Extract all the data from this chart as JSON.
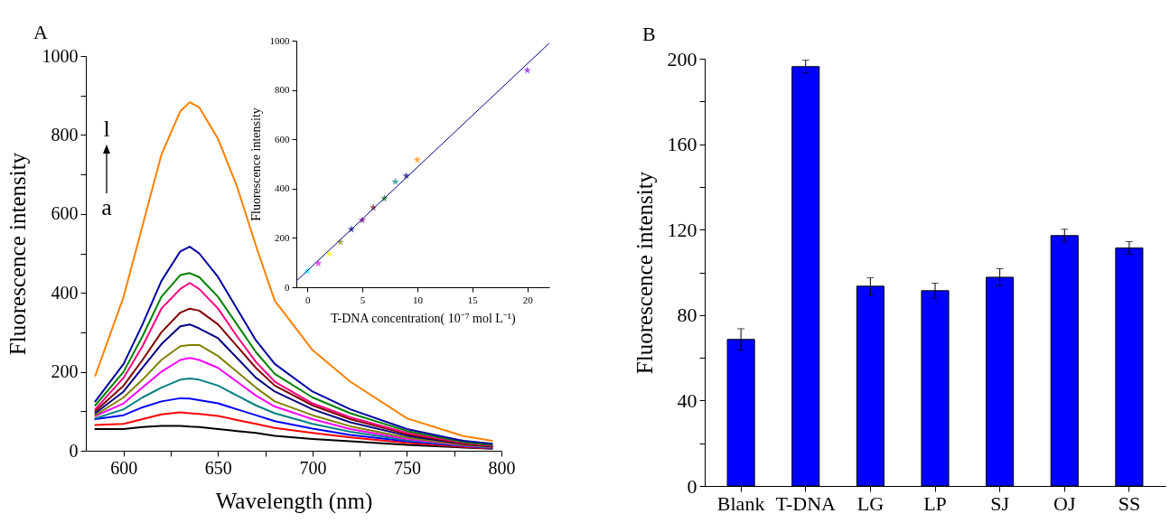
{
  "chart_data": [
    {
      "type": "line",
      "title": "A",
      "xlabel": "Wavelength (nm)",
      "ylabel": "Fluorescence intensity",
      "line_style": "solid",
      "annotations": [
        "l",
        "a"
      ],
      "x": [
        585,
        600,
        610,
        620,
        630,
        635,
        640,
        650,
        660,
        670,
        680,
        700,
        720,
        750,
        780,
        795
      ],
      "series": [
        {
          "color": "#000000",
          "values": [
            55,
            55,
            60,
            63,
            63,
            61,
            60,
            55,
            50,
            45,
            38,
            30,
            24,
            15,
            8,
            5
          ]
        },
        {
          "color": "#ff0000",
          "values": [
            65,
            68,
            80,
            92,
            97,
            95,
            93,
            88,
            78,
            68,
            58,
            45,
            34,
            20,
            10,
            6
          ]
        },
        {
          "color": "#0000ff",
          "values": [
            80,
            90,
            110,
            125,
            133,
            132,
            128,
            120,
            105,
            90,
            75,
            56,
            40,
            24,
            12,
            7
          ]
        },
        {
          "color": "#008080",
          "values": [
            82,
            105,
            135,
            160,
            180,
            183,
            180,
            165,
            140,
            115,
            95,
            68,
            48,
            27,
            13,
            8
          ]
        },
        {
          "color": "#ff00ff",
          "values": [
            88,
            120,
            160,
            200,
            230,
            235,
            230,
            210,
            175,
            140,
            112,
            80,
            55,
            30,
            14,
            9
          ]
        },
        {
          "color": "#808000",
          "values": [
            90,
            135,
            180,
            230,
            265,
            268,
            268,
            240,
            200,
            160,
            125,
            90,
            62,
            33,
            15,
            10
          ]
        },
        {
          "color": "#000080",
          "values": [
            95,
            150,
            210,
            270,
            315,
            320,
            310,
            285,
            235,
            185,
            150,
            105,
            72,
            38,
            17,
            11
          ]
        },
        {
          "color": "#800000",
          "values": [
            100,
            165,
            230,
            300,
            350,
            360,
            355,
            320,
            265,
            210,
            165,
            115,
            80,
            42,
            18,
            12
          ]
        },
        {
          "color": "#ff0080",
          "values": [
            105,
            185,
            265,
            360,
            410,
            425,
            410,
            360,
            290,
            225,
            175,
            120,
            85,
            45,
            20,
            13
          ]
        },
        {
          "color": "#008000",
          "values": [
            115,
            200,
            290,
            390,
            445,
            450,
            440,
            390,
            320,
            250,
            195,
            135,
            95,
            50,
            22,
            15
          ]
        },
        {
          "color": "#0000a0",
          "values": [
            125,
            220,
            320,
            430,
            505,
            517,
            500,
            440,
            360,
            280,
            220,
            150,
            105,
            55,
            25,
            18
          ]
        },
        {
          "color": "#ff8000",
          "values": [
            190,
            390,
            570,
            750,
            860,
            883,
            870,
            790,
            670,
            520,
            380,
            255,
            175,
            82,
            37,
            25
          ]
        }
      ],
      "xlim": [
        580,
        800
      ],
      "xticks": [
        600,
        {
          "value": 625,
          "label": null
        },
        650,
        {
          "value": 675,
          "label": null
        },
        700,
        {
          "value": 725,
          "label": null
        },
        750,
        {
          "value": 775,
          "label": null
        },
        800
      ],
      "ylim": [
        0,
        1000
      ],
      "yticks": [
        0,
        {
          "value": 100,
          "label": null
        },
        200,
        {
          "value": 300,
          "label": null
        },
        400,
        {
          "value": 500,
          "label": null
        },
        600,
        {
          "value": 700,
          "label": null
        },
        800,
        {
          "value": 900,
          "label": null
        },
        1000
      ]
    },
    {
      "type": "scatter",
      "xlabel": "T-DNA concentration( 10⁻⁷ mol L⁻¹)",
      "ylabel": "Fluorescence intensity",
      "series": [
        {
          "type": "scatter",
          "marker": "star",
          "x": [
            0,
            1,
            2,
            3,
            4,
            5,
            6,
            7,
            8,
            9,
            10,
            20
          ],
          "values": [
            65,
            97,
            135,
            183,
            235,
            272,
            323,
            360,
            428,
            452,
            517,
            880
          ],
          "colors": [
            "#00ffff",
            "#ff00ff",
            "#ffff00",
            "#808000",
            "#000080",
            "#800080",
            "#800000",
            "#008000",
            "#008080",
            "#000080",
            "#ff8000",
            "#8000ff"
          ]
        },
        {
          "type": "line",
          "color": "#000080",
          "x": [
            -1,
            22
          ],
          "values": [
            25,
            990
          ]
        }
      ],
      "xlim": [
        -1,
        22
      ],
      "xticks": [
        0,
        5,
        10,
        15,
        20
      ],
      "ylim": [
        0,
        1000
      ],
      "yticks": [
        0,
        200,
        400,
        600,
        800,
        1000
      ]
    },
    {
      "type": "bar",
      "title": "B",
      "ylabel": "Fluorescence intensity",
      "categories": [
        "Blank",
        "T-DNA",
        "LG",
        "LP",
        "SJ",
        "OJ",
        "SS"
      ],
      "values": [
        68.6,
        196.3,
        93.5,
        91.4,
        97.7,
        117.2,
        111.4
      ],
      "errors": [
        5,
        3,
        4,
        3.5,
        4,
        3,
        3
      ],
      "color": "#0000ff",
      "ylim": [
        0,
        200
      ],
      "yticks": [
        0,
        {
          "value": 20,
          "label": null
        },
        40,
        {
          "value": 60,
          "label": null
        },
        80,
        {
          "value": 100,
          "label": null
        },
        120,
        {
          "value": 140,
          "label": null
        },
        160,
        {
          "value": 180,
          "label": null
        },
        200
      ]
    }
  ]
}
